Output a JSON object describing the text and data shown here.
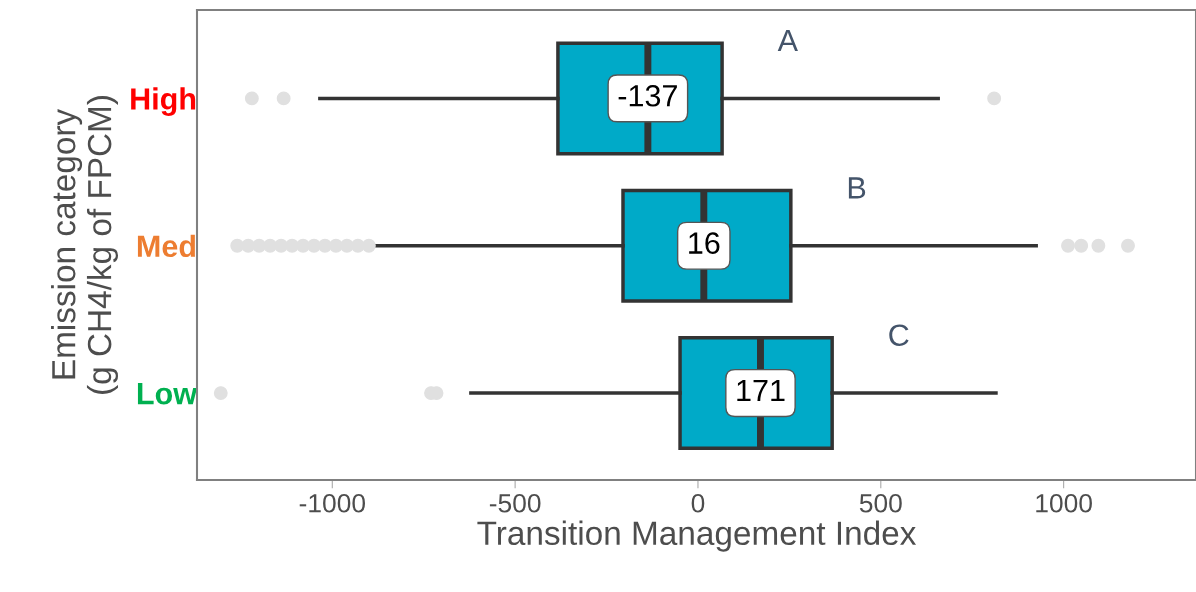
{
  "chart_data": {
    "type": "box",
    "orientation": "horizontal",
    "xlabel": "Transition Management Index",
    "ylabel": "Emission category\n(g CH4/kg of FPCM)",
    "categories": [
      "High",
      "Med",
      "Low"
    ],
    "boxes": [
      {
        "low": -1034,
        "q1": -383,
        "median": -137,
        "q3": 66,
        "high": 657,
        "outliers": [
          -1220,
          -1133,
          810
        ]
      },
      {
        "low": -886,
        "q1": -205,
        "median": 16,
        "q3": 254,
        "high": 925,
        "outliers": [
          -1260,
          -1230,
          -1200,
          -1170,
          -1140,
          -1110,
          -1080,
          -1050,
          -1020,
          -990,
          -960,
          -930,
          -900,
          1012,
          1048,
          1095,
          1176
        ]
      },
      {
        "low": -621,
        "q1": -49,
        "median": 171,
        "q3": 367,
        "high": 815,
        "outliers": [
          -1305,
          -730,
          -715
        ]
      }
    ],
    "color": "#00aac8",
    "annotations": [
      "A",
      "B",
      "C",
      {
        "text": "-137",
        "x": -137,
        "y": "High"
      },
      {
        "text": "16",
        "x": 16,
        "y": "Med"
      },
      {
        "text": "171",
        "x": 171,
        "y": "Low"
      }
    ],
    "xlim": [
      -1370,
      1362
    ],
    "xticks": [
      -1000,
      -500,
      0,
      500,
      1000
    ],
    "grid": false,
    "legend": false
  }
}
